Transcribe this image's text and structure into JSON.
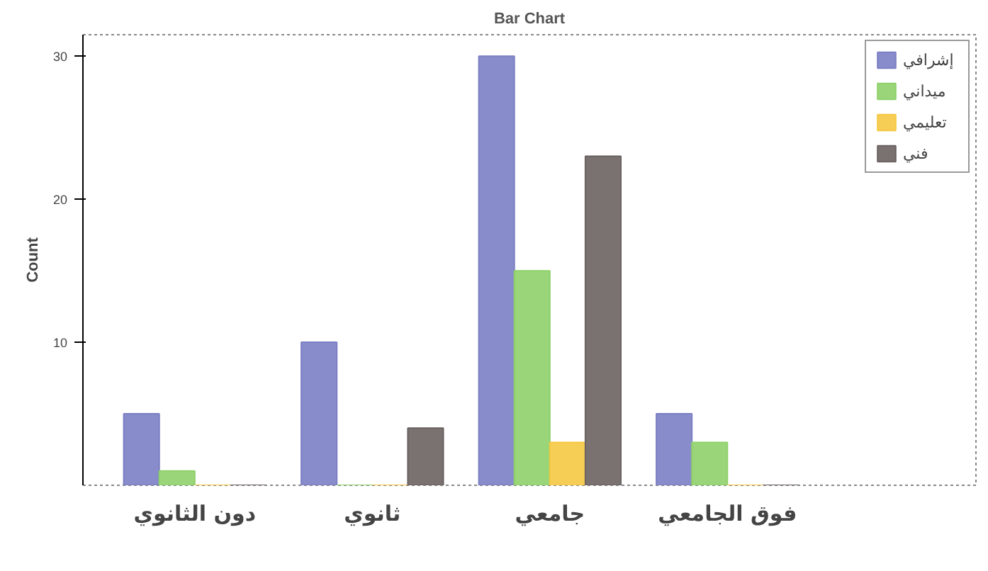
{
  "chart_data": {
    "type": "bar",
    "title": "Bar Chart",
    "ylabel": "Count",
    "categories": [
      "دون الثانوي",
      "ثانوي",
      "جامعي",
      "فوق الجامعي"
    ],
    "series": [
      {
        "name": "إشرافي",
        "color": "#7b7fc4",
        "values": [
          5,
          10,
          30,
          5
        ]
      },
      {
        "name": "ميداني",
        "color": "#8fd16a",
        "values": [
          1,
          0,
          15,
          3
        ]
      },
      {
        "name": "تعليمي",
        "color": "#f5c842",
        "values": [
          0,
          0,
          3,
          0
        ]
      },
      {
        "name": "فني",
        "color": "#6b6262",
        "values": [
          0,
          4,
          23,
          0
        ]
      }
    ],
    "ylim": [
      0,
      31.5
    ],
    "yticks": [
      10,
      20,
      30
    ],
    "grid": false,
    "legend": "right"
  }
}
